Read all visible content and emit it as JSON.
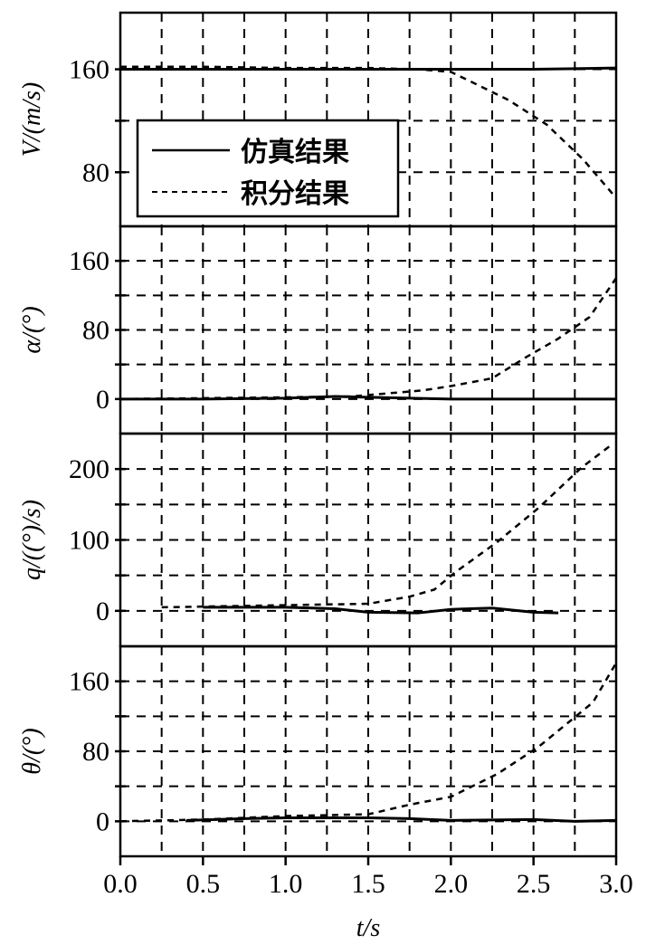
{
  "chart_data": {
    "type": "line",
    "xlabel": "t/s",
    "xlim": [
      0,
      3.0
    ],
    "xticks": [
      "0.0",
      "0.5",
      "1.0",
      "1.5",
      "2.0",
      "2.5",
      "3.0"
    ],
    "xgrid_step": 0.25,
    "grid": true,
    "legend": {
      "placement": "top-left of first panel",
      "entries": [
        {
          "label": "仿真结果",
          "style": "solid"
        },
        {
          "label": "积分结果",
          "style": "dashed"
        }
      ]
    },
    "panels": [
      {
        "ylabel": "V/(m/s)",
        "ylim": [
          38,
          204
        ],
        "yticks": [
          80,
          160
        ],
        "ygrid": [
          80,
          120,
          160
        ],
        "series": [
          {
            "style": "solid",
            "x": [
              0,
              0.5,
              1.0,
              1.5,
              2.0,
              2.5,
              3.0
            ],
            "y": [
              160,
              160,
              160,
              160,
              160,
              160,
              161
            ]
          },
          {
            "style": "dashed",
            "x": [
              0,
              0.5,
              1.0,
              1.5,
              1.8,
              2.0,
              2.16,
              2.35,
              2.58,
              2.8,
              3.0
            ],
            "y": [
              162,
              162,
              161,
              161,
              160,
              158,
              148,
              136,
              117,
              90,
              60
            ]
          }
        ]
      },
      {
        "ylabel": "α/(°)",
        "ylim": [
          -40,
          200
        ],
        "yticks": [
          0,
          80,
          160
        ],
        "ygrid": [
          0,
          40,
          80,
          120,
          160
        ],
        "series": [
          {
            "style": "solid",
            "x": [
              0,
              0.5,
              1.0,
              1.3,
              1.5,
              2.0,
              2.5,
              3.0
            ],
            "y": [
              0,
              0,
              1,
              3,
              2,
              0,
              0,
              0
            ]
          },
          {
            "style": "dashed",
            "x": [
              0,
              0.5,
              1.0,
              1.4,
              1.83,
              2.0,
              2.25,
              2.46,
              2.65,
              2.84,
              3.0
            ],
            "y": [
              0,
              1,
              2,
              3,
              10,
              15,
              24,
              49,
              70,
              95,
              140
            ]
          }
        ]
      },
      {
        "ylabel": "q/((°)/s)",
        "ylim": [
          -50,
          250
        ],
        "yticks": [
          0,
          100,
          200
        ],
        "ygrid": [
          0,
          50,
          100,
          150,
          200
        ],
        "series": [
          {
            "style": "solid",
            "x": [
              0.5,
              1.0,
              1.3,
              1.5,
              1.8,
              2.0,
              2.25,
              2.5,
              2.65
            ],
            "y": [
              5,
              5,
              3,
              -2,
              -3,
              2,
              4,
              -2,
              -3
            ]
          },
          {
            "style": "dashed",
            "x": [
              0.25,
              0.5,
              1.0,
              1.5,
              1.75,
              1.9,
              2.03,
              2.28,
              2.53,
              2.79,
              2.96
            ],
            "y": [
              5,
              6,
              8,
              10,
              20,
              30,
              55,
              97,
              145,
              202,
              232
            ]
          }
        ]
      },
      {
        "ylabel": "θ/(°)",
        "ylim": [
          -40,
          200
        ],
        "yticks": [
          0,
          80,
          160
        ],
        "ygrid": [
          0,
          40,
          80,
          120,
          160
        ],
        "series": [
          {
            "style": "solid",
            "x": [
              0.4,
              0.75,
              1.0,
              1.5,
              1.75,
              2.0,
              2.5,
              2.75,
              3.0
            ],
            "y": [
              1,
              3,
              4,
              4,
              3,
              1,
              2,
              0,
              1
            ]
          },
          {
            "style": "dashed",
            "x": [
              0,
              0.5,
              1.0,
              1.5,
              1.75,
              2.0,
              2.28,
              2.53,
              2.86,
              3.0
            ],
            "y": [
              0,
              2,
              6,
              8,
              19,
              28,
              54,
              85,
              136,
              181
            ]
          }
        ]
      }
    ]
  }
}
